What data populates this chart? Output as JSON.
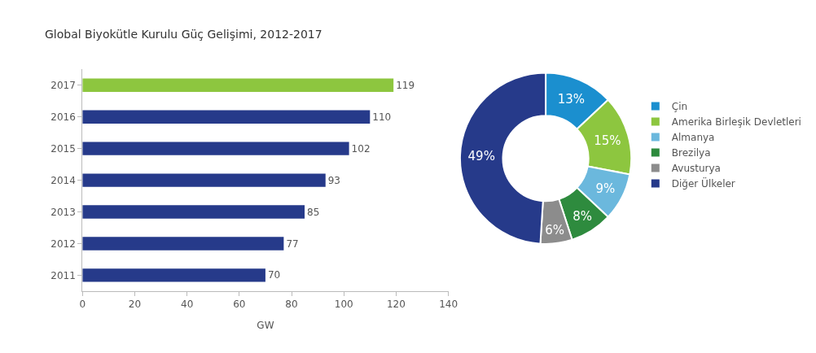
{
  "chart_data": [
    {
      "type": "bar",
      "title": "Global Biyokütle Kurulu Güç Gelişimi, 2012-2017",
      "orientation": "horizontal",
      "xlabel": "GW",
      "categories": [
        "2017",
        "2016",
        "2015",
        "2014",
        "2013",
        "2012",
        "2011"
      ],
      "values": [
        119,
        110,
        102,
        93,
        85,
        77,
        70
      ],
      "colors": [
        "#8dc63f",
        "#263a8a",
        "#263a8a",
        "#263a8a",
        "#263a8a",
        "#263a8a",
        "#263a8a"
      ],
      "xlim": [
        0,
        140
      ],
      "xticks": [
        0,
        20,
        40,
        60,
        80,
        100,
        120,
        140
      ],
      "data_labels": true
    },
    {
      "type": "donut",
      "categories": [
        "Çin",
        "Amerika Birleşik Devletleri",
        "Almanya",
        "Brezilya",
        "Avusturya",
        "Diğer Ülkeler"
      ],
      "values": [
        13,
        15,
        9,
        8,
        6,
        49
      ],
      "value_labels": [
        "13%",
        "15%",
        "9%",
        "8%",
        "6%",
        "49%"
      ],
      "colors": [
        "#1b8fcf",
        "#8dc63f",
        "#6bb8dd",
        "#2e8b3e",
        "#8c8c8c",
        "#263a8a"
      ],
      "legend": "right"
    }
  ]
}
